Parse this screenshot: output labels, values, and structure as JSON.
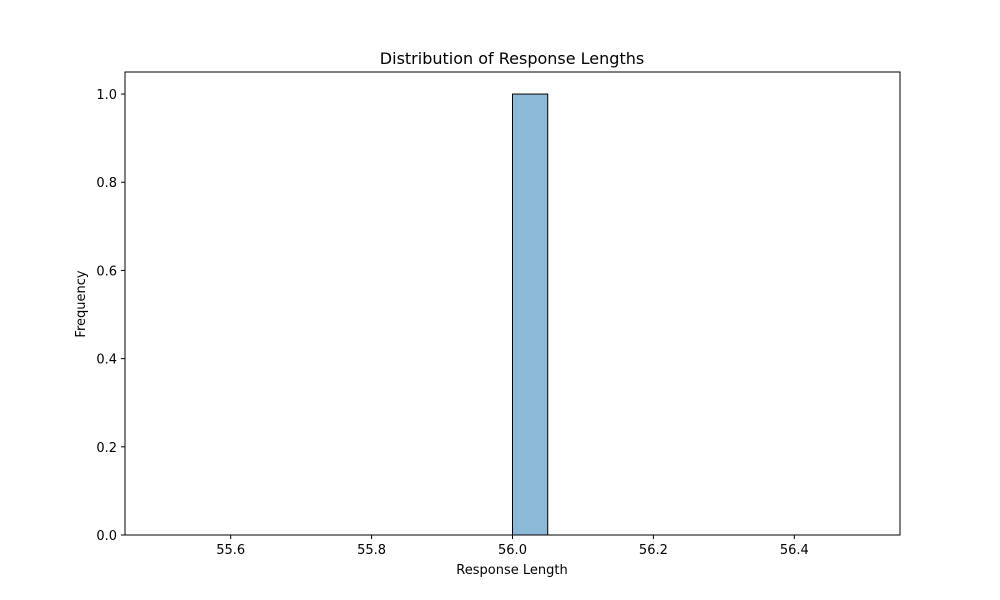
{
  "chart_data": {
    "type": "bar",
    "title": "Distribution of Response Lengths",
    "xlabel": "Response Length",
    "ylabel": "Frequency",
    "xlim": [
      55.45,
      56.55
    ],
    "ylim": [
      0,
      1.05
    ],
    "bins": [
      {
        "x0": 55.5,
        "x1": 55.55,
        "count": 0
      },
      {
        "x0": 55.55,
        "x1": 55.6,
        "count": 0
      },
      {
        "x0": 55.6,
        "x1": 55.65,
        "count": 0
      },
      {
        "x0": 55.65,
        "x1": 55.7,
        "count": 0
      },
      {
        "x0": 55.7,
        "x1": 55.75,
        "count": 0
      },
      {
        "x0": 55.75,
        "x1": 55.8,
        "count": 0
      },
      {
        "x0": 55.8,
        "x1": 55.85,
        "count": 0
      },
      {
        "x0": 55.85,
        "x1": 55.9,
        "count": 0
      },
      {
        "x0": 55.9,
        "x1": 55.95,
        "count": 0
      },
      {
        "x0": 55.95,
        "x1": 56.0,
        "count": 0
      },
      {
        "x0": 56.0,
        "x1": 56.05,
        "count": 1
      },
      {
        "x0": 56.05,
        "x1": 56.1,
        "count": 0
      },
      {
        "x0": 56.1,
        "x1": 56.15,
        "count": 0
      },
      {
        "x0": 56.15,
        "x1": 56.2,
        "count": 0
      },
      {
        "x0": 56.2,
        "x1": 56.25,
        "count": 0
      },
      {
        "x0": 56.25,
        "x1": 56.3,
        "count": 0
      },
      {
        "x0": 56.3,
        "x1": 56.35,
        "count": 0
      },
      {
        "x0": 56.35,
        "x1": 56.4,
        "count": 0
      },
      {
        "x0": 56.4,
        "x1": 56.45,
        "count": 0
      },
      {
        "x0": 56.45,
        "x1": 56.5,
        "count": 0
      }
    ],
    "x_ticks": [
      55.6,
      55.8,
      56.0,
      56.2,
      56.4
    ],
    "x_tick_labels": [
      "55.6",
      "55.8",
      "56.0",
      "56.2",
      "56.4"
    ],
    "y_ticks": [
      0.0,
      0.2,
      0.4,
      0.6,
      0.8,
      1.0
    ],
    "y_tick_labels": [
      "0.0",
      "0.2",
      "0.4",
      "0.6",
      "0.8",
      "1.0"
    ],
    "bar_color": "#8db9d9",
    "edge_color": "#000000",
    "grid": false,
    "legend": "none"
  }
}
